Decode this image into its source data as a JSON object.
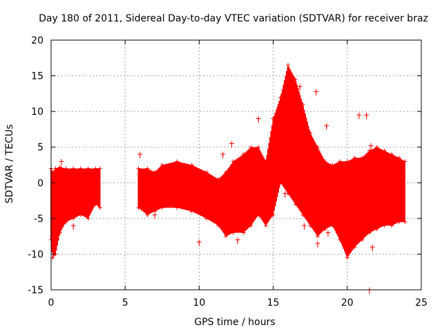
{
  "chart_data": {
    "type": "scatter",
    "title": "Day 180 of 2011, Sidereal Day-to-day VTEC variation (SDTVAR) for receiver braz",
    "xlabel": "GPS time / hours",
    "ylabel": "SDTVAR / TECUs",
    "xlim": [
      0,
      25
    ],
    "ylim": [
      -15,
      20
    ],
    "xticks": [
      0,
      5,
      10,
      15,
      20,
      25
    ],
    "yticks": [
      -15,
      -10,
      -5,
      0,
      5,
      10,
      15,
      20
    ],
    "xtick_labels": [
      "0",
      "5",
      "10",
      "15",
      "20",
      "25"
    ],
    "ytick_labels": [
      "-15",
      "-10",
      "-5",
      "0",
      "5",
      "10",
      "15",
      "20"
    ],
    "grid": true,
    "marker": "+",
    "color": "#ff0000",
    "series": [
      {
        "name": "SDTVAR",
        "envelope": [
          {
            "x": 0.0,
            "low": -8.0,
            "high": 2.0
          },
          {
            "x": 0.1,
            "low": -10.5,
            "high": 1.5
          },
          {
            "x": 0.3,
            "low": -10.0,
            "high": 2.0
          },
          {
            "x": 0.6,
            "low": -7.0,
            "high": 2.2
          },
          {
            "x": 1.0,
            "low": -5.5,
            "high": 2.0
          },
          {
            "x": 1.5,
            "low": -5.0,
            "high": 2.0
          },
          {
            "x": 2.0,
            "low": -4.5,
            "high": 2.0
          },
          {
            "x": 2.5,
            "low": -5.0,
            "high": 2.0
          },
          {
            "x": 3.0,
            "low": -3.0,
            "high": 2.0
          },
          {
            "x": 3.3,
            "low": -3.5,
            "high": 2.0
          },
          {
            "x": null,
            "low": null,
            "high": null
          },
          {
            "x": 5.9,
            "low": -3.5,
            "high": 2.0
          },
          {
            "x": 6.5,
            "low": -4.5,
            "high": 2.0
          },
          {
            "x": 7.0,
            "low": -4.0,
            "high": 1.5
          },
          {
            "x": 7.5,
            "low": -3.5,
            "high": 2.5
          },
          {
            "x": 8.5,
            "low": -3.5,
            "high": 3.0
          },
          {
            "x": 9.5,
            "low": -4.0,
            "high": 2.5
          },
          {
            "x": 10.5,
            "low": -5.0,
            "high": 1.5
          },
          {
            "x": 11.3,
            "low": -6.0,
            "high": 0.5
          },
          {
            "x": 11.8,
            "low": -7.5,
            "high": 1.5
          },
          {
            "x": 12.3,
            "low": -7.0,
            "high": 3.0
          },
          {
            "x": 13.0,
            "low": -7.0,
            "high": 4.0
          },
          {
            "x": 13.5,
            "low": -6.0,
            "high": 5.0
          },
          {
            "x": 14.0,
            "low": -4.5,
            "high": 5.0
          },
          {
            "x": 14.5,
            "low": -6.0,
            "high": 3.0
          },
          {
            "x": 15.0,
            "low": -4.5,
            "high": 9.0
          },
          {
            "x": 15.5,
            "low": 0.0,
            "high": 12.0
          },
          {
            "x": 16.0,
            "low": -1.5,
            "high": 16.5
          },
          {
            "x": 16.5,
            "low": -3.0,
            "high": 14.5
          },
          {
            "x": 17.0,
            "low": -4.5,
            "high": 11.0
          },
          {
            "x": 17.5,
            "low": -6.0,
            "high": 7.0
          },
          {
            "x": 18.0,
            "low": -7.5,
            "high": 5.0
          },
          {
            "x": 18.5,
            "low": -6.5,
            "high": 3.0
          },
          {
            "x": 19.0,
            "low": -6.0,
            "high": 2.5
          },
          {
            "x": 19.5,
            "low": -8.0,
            "high": 3.0
          },
          {
            "x": 20.0,
            "low": -10.5,
            "high": 3.0
          },
          {
            "x": 20.5,
            "low": -9.0,
            "high": 3.5
          },
          {
            "x": 21.0,
            "low": -8.0,
            "high": 3.5
          },
          {
            "x": 21.5,
            "low": -7.0,
            "high": 4.5
          },
          {
            "x": 22.0,
            "low": -6.5,
            "high": 5.0
          },
          {
            "x": 22.5,
            "low": -6.0,
            "high": 4.5
          },
          {
            "x": 23.0,
            "low": -6.0,
            "high": 4.0
          },
          {
            "x": 23.5,
            "low": -5.5,
            "high": 3.5
          },
          {
            "x": 23.9,
            "low": -5.5,
            "high": 3.0
          }
        ],
        "outliers": [
          {
            "x": 0.7,
            "y": 3.0
          },
          {
            "x": 1.5,
            "y": -6.0
          },
          {
            "x": 6.0,
            "y": 4.0
          },
          {
            "x": 7.0,
            "y": -4.5
          },
          {
            "x": 10.0,
            "y": -8.3
          },
          {
            "x": 11.6,
            "y": 4.0
          },
          {
            "x": 12.2,
            "y": 5.5
          },
          {
            "x": 12.6,
            "y": -8.0
          },
          {
            "x": 14.0,
            "y": 9.0
          },
          {
            "x": 15.8,
            "y": -1.5
          },
          {
            "x": 16.8,
            "y": 13.5
          },
          {
            "x": 17.1,
            "y": -6.0
          },
          {
            "x": 17.9,
            "y": 12.8
          },
          {
            "x": 18.0,
            "y": -8.5
          },
          {
            "x": 18.6,
            "y": 8.0
          },
          {
            "x": 18.7,
            "y": -7.0
          },
          {
            "x": 20.8,
            "y": 9.5
          },
          {
            "x": 21.3,
            "y": 9.5
          },
          {
            "x": 21.6,
            "y": 5.2
          },
          {
            "x": 21.5,
            "y": -15.0
          },
          {
            "x": 21.7,
            "y": -9.0
          }
        ]
      }
    ]
  }
}
